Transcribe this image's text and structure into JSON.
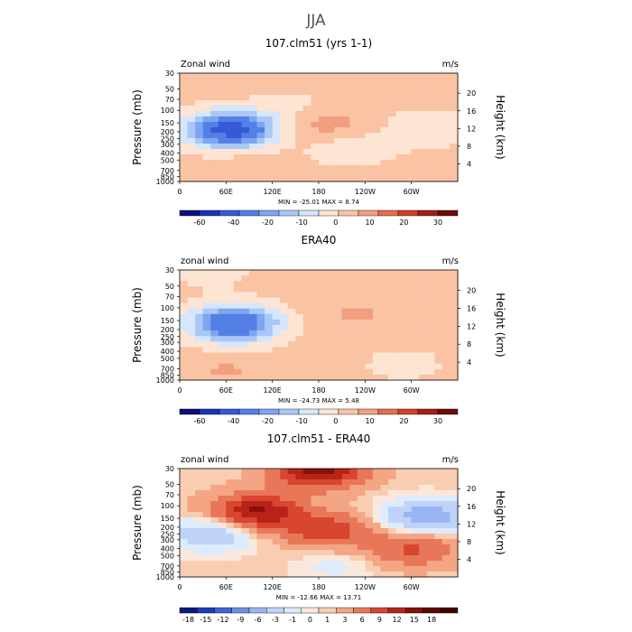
{
  "figure": {
    "title": "JJA"
  },
  "chart_data": [
    {
      "type": "heatmap",
      "title": "107.clm51 (yrs 1-1)",
      "field_label": "Zonal wind",
      "units": "m/s",
      "ylabel_left": "Pressure (mb)",
      "ylabel_right": "Height (km)",
      "pressure_ticks": [
        "30",
        "50",
        "70",
        "100",
        "150",
        "200",
        "250",
        "300",
        "400",
        "500",
        "700",
        "850",
        "1000"
      ],
      "height_ticks": [
        "20",
        "16",
        "12",
        "8",
        "4"
      ],
      "x_ticks": [
        "0",
        "60E",
        "120E",
        "180",
        "120W",
        "60W"
      ],
      "stats": "MIN = -25.01   MAX =  8.74",
      "colorbar_labels": [
        "-60",
        "-40",
        "-20",
        "-10",
        "0",
        "10",
        "20",
        "30"
      ],
      "features": [
        {
          "lon": 70,
          "p": 180,
          "value": -22
        },
        {
          "lon": 60,
          "p": 200,
          "value": -15
        },
        {
          "lon": 188,
          "p": 150,
          "value": 7
        },
        {
          "lon": 320,
          "p": 180,
          "value": -6
        },
        {
          "lon": 220,
          "p": 350,
          "value": -5
        },
        {
          "lon": 90,
          "p": 700,
          "value": 3
        },
        {
          "lon": 150,
          "p": 100,
          "value": -4
        }
      ]
    },
    {
      "type": "heatmap",
      "title": "ERA40",
      "field_label": "zonal wind",
      "units": "m/s",
      "ylabel_left": "Pressure (mb)",
      "ylabel_right": "Height (km)",
      "pressure_ticks": [
        "30",
        "50",
        "70",
        "100",
        "150",
        "200",
        "250",
        "300",
        "400",
        "500",
        "700",
        "850",
        "1000"
      ],
      "height_ticks": [
        "20",
        "16",
        "12",
        "8",
        "4"
      ],
      "x_ticks": [
        "0",
        "60E",
        "120E",
        "180",
        "120W",
        "60W"
      ],
      "stats": "MIN = -24.73   MAX =  5.48",
      "colorbar_labels": [
        "-60",
        "-40",
        "-20",
        "-10",
        "0",
        "10",
        "20",
        "30"
      ],
      "features": [
        {
          "lon": 68,
          "p": 160,
          "value": -20
        },
        {
          "lon": 75,
          "p": 180,
          "value": -12
        },
        {
          "lon": 40,
          "p": 32,
          "value": -3
        },
        {
          "lon": 230,
          "p": 120,
          "value": 4
        },
        {
          "lon": 290,
          "p": 600,
          "value": -3
        },
        {
          "lon": 60,
          "p": 750,
          "value": 4
        }
      ]
    },
    {
      "type": "heatmap",
      "title": "107.clm51 - ERA40",
      "field_label": "zonal wind",
      "units": "m/s",
      "ylabel_left": "Pressure (mb)",
      "ylabel_right": "Height (km)",
      "pressure_ticks": [
        "30",
        "50",
        "70",
        "100",
        "150",
        "200",
        "250",
        "300",
        "400",
        "500",
        "700",
        "850",
        "1000"
      ],
      "height_ticks": [
        "20",
        "16",
        "12",
        "8",
        "4"
      ],
      "x_ticks": [
        "0",
        "60E",
        "120E",
        "180",
        "120W",
        "60W"
      ],
      "stats": "MIN = -12.66   MAX = 13.71",
      "colorbar_labels": [
        "-18",
        "-15",
        "-12",
        "-9",
        "-6",
        "-3",
        "-1",
        "0",
        "1",
        "3",
        "6",
        "9",
        "12",
        "15",
        "18"
      ],
      "features": [
        {
          "lon": 180,
          "p": 32,
          "value": 13
        },
        {
          "lon": 100,
          "p": 120,
          "value": 12
        },
        {
          "lon": 190,
          "p": 220,
          "value": 8
        },
        {
          "lon": 320,
          "p": 140,
          "value": -9
        },
        {
          "lon": 40,
          "p": 250,
          "value": -6
        },
        {
          "lon": 300,
          "p": 400,
          "value": 6
        },
        {
          "lon": 200,
          "p": 700,
          "value": -2
        }
      ]
    }
  ],
  "palettes": {
    "panels_1_2": [
      "#08107a",
      "#1a35b8",
      "#3559d9",
      "#5480e6",
      "#7ea6f0",
      "#a9c8f7",
      "#d6e6fb",
      "#fde4d3",
      "#f9c3a4",
      "#f19f7f",
      "#e56f4d",
      "#d3402a",
      "#a81b16",
      "#6e0b07"
    ],
    "panel_3": [
      "#0a1a7e",
      "#1c3cb8",
      "#3f64d4",
      "#6b8fe6",
      "#98b6f2",
      "#bfd3f8",
      "#deebfc",
      "#fbe8dc",
      "#f9cdb2",
      "#f3a584",
      "#e8775a",
      "#d9462f",
      "#b82319",
      "#8a0f0b",
      "#5e0705",
      "#400302"
    ]
  }
}
